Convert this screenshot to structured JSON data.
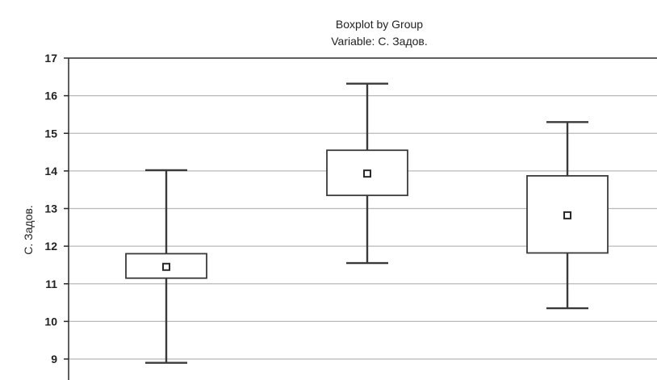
{
  "chart_data": {
    "type": "boxplot",
    "title": "Boxplot by Group",
    "subtitle": "Variable: С. Задов.",
    "ylabel": "С. Задов.",
    "xlabel": "",
    "ylim": [
      8.5,
      17
    ],
    "yticks": [
      9,
      10,
      11,
      12,
      13,
      14,
      15,
      16,
      17
    ],
    "grid": true,
    "groups": [
      {
        "min": 8.9,
        "q1": 11.15,
        "median": 11.45,
        "q3": 11.8,
        "max": 14.02
      },
      {
        "min": 11.55,
        "q1": 13.35,
        "median": 13.93,
        "q3": 14.55,
        "max": 16.32
      },
      {
        "min": 10.35,
        "q1": 11.82,
        "median": 12.82,
        "q3": 13.87,
        "max": 15.3
      }
    ]
  }
}
